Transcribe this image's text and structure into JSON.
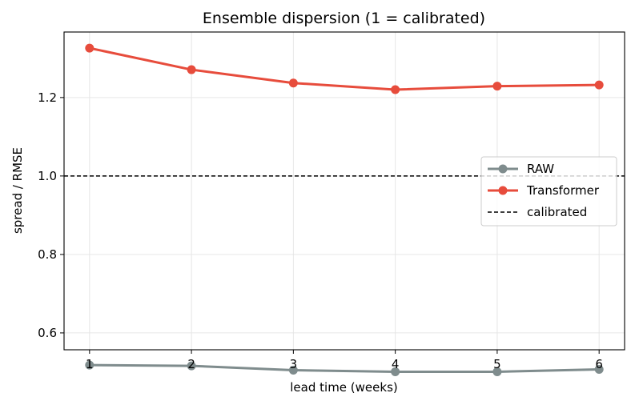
{
  "chart_data": {
    "type": "line",
    "title": "Ensemble dispersion (1 = calibrated)",
    "xlabel": "lead time (weeks)",
    "ylabel": "spread / RMSE",
    "x": [
      1,
      2,
      3,
      4,
      5,
      6
    ],
    "xlim": [
      0.75,
      6.25
    ],
    "ylim": [
      0.557,
      1.367
    ],
    "xticks": [
      "1",
      "2",
      "3",
      "4",
      "5",
      "6"
    ],
    "yticks": [
      "0.6",
      "0.8",
      "1.0",
      "1.2"
    ],
    "ytick_values": [
      0.6,
      0.8,
      1.0,
      1.2
    ],
    "grid": true,
    "legend_position": "center-right",
    "series": [
      {
        "name": "RAW",
        "color": "#7f8c8d",
        "marker": "circle",
        "values": [
          0.518,
          0.516,
          0.505,
          0.501,
          0.501,
          0.507
        ]
      },
      {
        "name": "Transformer",
        "color": "#e74c3c",
        "marker": "circle",
        "values": [
          1.326,
          1.271,
          1.237,
          1.22,
          1.229,
          1.232
        ]
      }
    ],
    "reference_line": {
      "name": "calibrated",
      "y": 1.0,
      "style": "dashed",
      "color": "#000000"
    }
  }
}
